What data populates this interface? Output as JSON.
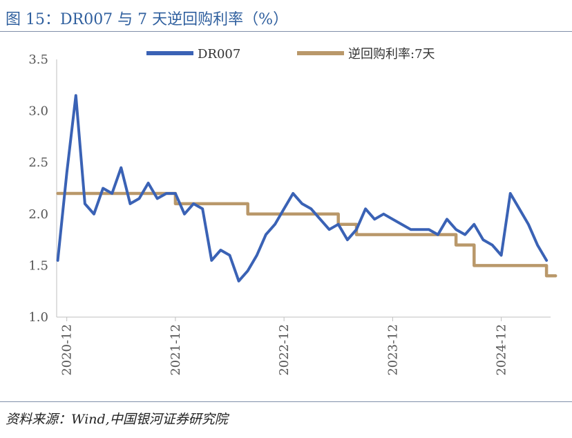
{
  "header": {
    "title": "图 15：DR007 与 7 天逆回购利率（%）"
  },
  "footer": {
    "source": "资料来源：Wind,中国银河证券研究院"
  },
  "colors": {
    "dr007": "#3A62B5",
    "reverse_repo": "#B9986A",
    "title": "#2F5F9E"
  },
  "chart_data": {
    "type": "line",
    "title": "图 15：DR007 与 7 天逆回购利率（%）",
    "ylim": [
      1.0,
      3.5
    ],
    "yticks": [
      "1.0",
      "1.5",
      "2.0",
      "2.5",
      "3.0",
      "3.5"
    ],
    "x_start": "2020-11",
    "x_end": "2025-05",
    "xticks": [
      "2020-12",
      "2021-12",
      "2022-12",
      "2023-12",
      "2024-12"
    ],
    "legend": {
      "position": "top",
      "entries": [
        "DR007",
        "逆回购利率:7天"
      ]
    },
    "series": [
      {
        "name": "DR007",
        "x": [
          "2020-11",
          "2020-12",
          "2021-01",
          "2021-02",
          "2021-03",
          "2021-04",
          "2021-05",
          "2021-06",
          "2021-07",
          "2021-08",
          "2021-09",
          "2021-10",
          "2021-11",
          "2021-12",
          "2022-01",
          "2022-02",
          "2022-03",
          "2022-04",
          "2022-05",
          "2022-06",
          "2022-07",
          "2022-08",
          "2022-09",
          "2022-10",
          "2022-11",
          "2022-12",
          "2023-01",
          "2023-02",
          "2023-03",
          "2023-04",
          "2023-05",
          "2023-06",
          "2023-07",
          "2023-08",
          "2023-09",
          "2023-10",
          "2023-11",
          "2023-12",
          "2024-01",
          "2024-02",
          "2024-03",
          "2024-04",
          "2024-05",
          "2024-06",
          "2024-07",
          "2024-08",
          "2024-09",
          "2024-10",
          "2024-11",
          "2024-12",
          "2025-01",
          "2025-02",
          "2025-03",
          "2025-04",
          "2025-05"
        ],
        "values": [
          1.55,
          2.4,
          3.15,
          2.1,
          2.0,
          2.25,
          2.2,
          2.45,
          2.1,
          2.15,
          2.3,
          2.15,
          2.2,
          2.2,
          2.0,
          2.1,
          2.05,
          1.55,
          1.65,
          1.6,
          1.35,
          1.45,
          1.6,
          1.8,
          1.9,
          2.05,
          2.2,
          2.1,
          2.05,
          1.95,
          1.85,
          1.9,
          1.75,
          1.85,
          2.05,
          1.95,
          2.0,
          1.95,
          1.9,
          1.85,
          1.85,
          1.85,
          1.8,
          1.95,
          1.85,
          1.8,
          1.9,
          1.75,
          1.7,
          1.6,
          2.2,
          2.05,
          1.9,
          1.7,
          1.55
        ]
      },
      {
        "name": "逆回购利率:7天",
        "x": [
          "2020-11",
          "2021-12",
          "2021-12",
          "2022-08",
          "2022-08",
          "2023-06",
          "2023-06",
          "2023-08",
          "2023-08",
          "2024-07",
          "2024-07",
          "2024-09",
          "2024-09",
          "2025-05",
          "2025-05",
          "2025-06"
        ],
        "values": [
          2.2,
          2.2,
          2.1,
          2.1,
          2.0,
          2.0,
          1.9,
          1.9,
          1.8,
          1.8,
          1.7,
          1.7,
          1.5,
          1.5,
          1.4,
          1.4
        ]
      }
    ]
  }
}
